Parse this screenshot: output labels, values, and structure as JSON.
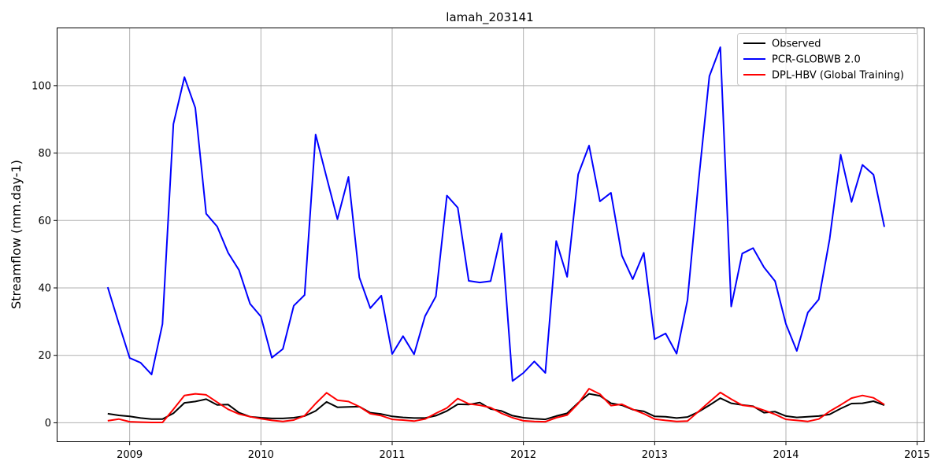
{
  "chart_data": {
    "type": "line",
    "title": "lamah_203141",
    "xlabel": "",
    "ylabel": "Streamflow (mm.day-1)",
    "xlim": [
      2008.45,
      2015.05
    ],
    "ylim": [
      -5.5,
      117
    ],
    "xticks": [
      2009,
      2010,
      2011,
      2012,
      2013,
      2014,
      2015
    ],
    "yticks": [
      0,
      20,
      40,
      60,
      80,
      100
    ],
    "grid": true,
    "legend_position": "top-right",
    "series": [
      {
        "name": "Observed",
        "color": "#000000",
        "points": [
          [
            2008.833,
            2.7
          ],
          [
            2008.917,
            2.2
          ],
          [
            2009.0,
            1.9
          ],
          [
            2009.083,
            1.4
          ],
          [
            2009.167,
            1.1
          ],
          [
            2009.25,
            1.1
          ],
          [
            2009.333,
            2.8
          ],
          [
            2009.417,
            5.9
          ],
          [
            2009.5,
            6.3
          ],
          [
            2009.583,
            7.0
          ],
          [
            2009.667,
            5.3
          ],
          [
            2009.75,
            5.4
          ],
          [
            2009.833,
            3.0
          ],
          [
            2009.917,
            1.8
          ],
          [
            2010.0,
            1.5
          ],
          [
            2010.083,
            1.3
          ],
          [
            2010.167,
            1.3
          ],
          [
            2010.25,
            1.5
          ],
          [
            2010.333,
            2.0
          ],
          [
            2010.417,
            3.5
          ],
          [
            2010.5,
            6.2
          ],
          [
            2010.583,
            4.6
          ],
          [
            2010.667,
            4.7
          ],
          [
            2010.75,
            4.8
          ],
          [
            2010.833,
            3.0
          ],
          [
            2010.917,
            2.6
          ],
          [
            2011.0,
            1.9
          ],
          [
            2011.083,
            1.6
          ],
          [
            2011.167,
            1.4
          ],
          [
            2011.25,
            1.4
          ],
          [
            2011.333,
            2.1
          ],
          [
            2011.417,
            3.5
          ],
          [
            2011.5,
            5.5
          ],
          [
            2011.583,
            5.4
          ],
          [
            2011.667,
            6.0
          ],
          [
            2011.75,
            4.1
          ],
          [
            2011.833,
            3.5
          ],
          [
            2011.917,
            2.1
          ],
          [
            2012.0,
            1.5
          ],
          [
            2012.083,
            1.2
          ],
          [
            2012.167,
            1.0
          ],
          [
            2012.25,
            2.0
          ],
          [
            2012.333,
            2.8
          ],
          [
            2012.417,
            5.9
          ],
          [
            2012.5,
            8.6
          ],
          [
            2012.583,
            8.0
          ],
          [
            2012.667,
            5.8
          ],
          [
            2012.75,
            5.2
          ],
          [
            2012.833,
            3.9
          ],
          [
            2012.917,
            3.4
          ],
          [
            2013.0,
            1.9
          ],
          [
            2013.083,
            1.8
          ],
          [
            2013.167,
            1.4
          ],
          [
            2013.25,
            1.7
          ],
          [
            2013.333,
            3.2
          ],
          [
            2013.417,
            5.2
          ],
          [
            2013.5,
            7.3
          ],
          [
            2013.583,
            5.8
          ],
          [
            2013.667,
            5.3
          ],
          [
            2013.75,
            4.9
          ],
          [
            2013.833,
            3.0
          ],
          [
            2013.917,
            3.3
          ],
          [
            2014.0,
            2.0
          ],
          [
            2014.083,
            1.6
          ],
          [
            2014.167,
            1.8
          ],
          [
            2014.25,
            2.0
          ],
          [
            2014.333,
            2.5
          ],
          [
            2014.417,
            4.2
          ],
          [
            2014.5,
            5.7
          ],
          [
            2014.583,
            5.8
          ],
          [
            2014.667,
            6.4
          ],
          [
            2014.75,
            5.2
          ]
        ]
      },
      {
        "name": "PCR-GLOBWB 2.0",
        "color": "#0000ff",
        "points": [
          [
            2008.833,
            40.2
          ],
          [
            2008.917,
            29.5
          ],
          [
            2009.0,
            19.2
          ],
          [
            2009.083,
            17.8
          ],
          [
            2009.167,
            14.3
          ],
          [
            2009.25,
            29.3
          ],
          [
            2009.333,
            88.6
          ],
          [
            2009.417,
            102.5
          ],
          [
            2009.5,
            93.4
          ],
          [
            2009.583,
            62.0
          ],
          [
            2009.667,
            58.2
          ],
          [
            2009.75,
            50.4
          ],
          [
            2009.833,
            45.3
          ],
          [
            2009.917,
            35.3
          ],
          [
            2010.0,
            31.5
          ],
          [
            2010.083,
            19.3
          ],
          [
            2010.167,
            21.9
          ],
          [
            2010.25,
            34.7
          ],
          [
            2010.333,
            37.9
          ],
          [
            2010.417,
            85.5
          ],
          [
            2010.5,
            72.8
          ],
          [
            2010.583,
            60.4
          ],
          [
            2010.667,
            72.9
          ],
          [
            2010.75,
            43.1
          ],
          [
            2010.833,
            34.0
          ],
          [
            2010.917,
            37.7
          ],
          [
            2011.0,
            20.4
          ],
          [
            2011.083,
            25.7
          ],
          [
            2011.167,
            20.3
          ],
          [
            2011.25,
            31.6
          ],
          [
            2011.333,
            37.5
          ],
          [
            2011.417,
            67.4
          ],
          [
            2011.5,
            63.8
          ],
          [
            2011.583,
            42.1
          ],
          [
            2011.667,
            41.6
          ],
          [
            2011.75,
            42.0
          ],
          [
            2011.833,
            56.2
          ],
          [
            2011.917,
            12.4
          ],
          [
            2012.0,
            14.8
          ],
          [
            2012.083,
            18.2
          ],
          [
            2012.167,
            14.8
          ],
          [
            2012.25,
            53.9
          ],
          [
            2012.333,
            43.3
          ],
          [
            2012.417,
            73.7
          ],
          [
            2012.5,
            82.2
          ],
          [
            2012.583,
            65.7
          ],
          [
            2012.667,
            68.2
          ],
          [
            2012.75,
            49.6
          ],
          [
            2012.833,
            42.6
          ],
          [
            2012.917,
            50.4
          ],
          [
            2013.0,
            24.8
          ],
          [
            2013.083,
            26.5
          ],
          [
            2013.167,
            20.5
          ],
          [
            2013.25,
            36.4
          ],
          [
            2013.333,
            71.0
          ],
          [
            2013.417,
            102.8
          ],
          [
            2013.5,
            111.4
          ],
          [
            2013.583,
            34.5
          ],
          [
            2013.667,
            50.2
          ],
          [
            2013.75,
            51.8
          ],
          [
            2013.833,
            46.1
          ],
          [
            2013.917,
            42.0
          ],
          [
            2014.0,
            29.3
          ],
          [
            2014.083,
            21.3
          ],
          [
            2014.167,
            32.7
          ],
          [
            2014.25,
            36.6
          ],
          [
            2014.333,
            54.5
          ],
          [
            2014.417,
            79.5
          ],
          [
            2014.5,
            65.5
          ],
          [
            2014.583,
            76.5
          ],
          [
            2014.667,
            73.6
          ],
          [
            2014.75,
            58.1
          ]
        ]
      },
      {
        "name": "DPL-HBV (Global Training)",
        "color": "#ff0000",
        "points": [
          [
            2008.833,
            0.6
          ],
          [
            2008.917,
            1.1
          ],
          [
            2009.0,
            0.3
          ],
          [
            2009.083,
            0.2
          ],
          [
            2009.167,
            0.1
          ],
          [
            2009.25,
            0.1
          ],
          [
            2009.333,
            4.0
          ],
          [
            2009.417,
            8.1
          ],
          [
            2009.5,
            8.6
          ],
          [
            2009.583,
            8.3
          ],
          [
            2009.667,
            6.1
          ],
          [
            2009.75,
            4.0
          ],
          [
            2009.833,
            2.6
          ],
          [
            2009.917,
            1.8
          ],
          [
            2010.0,
            1.2
          ],
          [
            2010.083,
            0.7
          ],
          [
            2010.167,
            0.4
          ],
          [
            2010.25,
            0.8
          ],
          [
            2010.333,
            2.1
          ],
          [
            2010.417,
            5.7
          ],
          [
            2010.5,
            8.9
          ],
          [
            2010.583,
            6.7
          ],
          [
            2010.667,
            6.3
          ],
          [
            2010.75,
            4.8
          ],
          [
            2010.833,
            2.7
          ],
          [
            2010.917,
            2.1
          ],
          [
            2011.0,
            1.0
          ],
          [
            2011.083,
            0.8
          ],
          [
            2011.167,
            0.5
          ],
          [
            2011.25,
            1.1
          ],
          [
            2011.333,
            2.8
          ],
          [
            2011.417,
            4.4
          ],
          [
            2011.5,
            7.2
          ],
          [
            2011.583,
            5.6
          ],
          [
            2011.667,
            5.2
          ],
          [
            2011.75,
            4.5
          ],
          [
            2011.833,
            2.8
          ],
          [
            2011.917,
            1.5
          ],
          [
            2012.0,
            0.6
          ],
          [
            2012.083,
            0.4
          ],
          [
            2012.167,
            0.3
          ],
          [
            2012.25,
            1.5
          ],
          [
            2012.333,
            2.3
          ],
          [
            2012.417,
            5.7
          ],
          [
            2012.5,
            10.1
          ],
          [
            2012.583,
            8.5
          ],
          [
            2012.667,
            5.1
          ],
          [
            2012.75,
            5.5
          ],
          [
            2012.833,
            4.0
          ],
          [
            2012.917,
            2.7
          ],
          [
            2013.0,
            1.1
          ],
          [
            2013.083,
            0.7
          ],
          [
            2013.167,
            0.4
          ],
          [
            2013.25,
            0.5
          ],
          [
            2013.333,
            3.3
          ],
          [
            2013.417,
            6.2
          ],
          [
            2013.5,
            9.0
          ],
          [
            2013.583,
            7.0
          ],
          [
            2013.667,
            5.2
          ],
          [
            2013.75,
            4.8
          ],
          [
            2013.833,
            3.7
          ],
          [
            2013.917,
            2.5
          ],
          [
            2014.0,
            1.0
          ],
          [
            2014.083,
            0.7
          ],
          [
            2014.167,
            0.4
          ],
          [
            2014.25,
            1.1
          ],
          [
            2014.333,
            3.4
          ],
          [
            2014.417,
            5.3
          ],
          [
            2014.5,
            7.3
          ],
          [
            2014.583,
            8.1
          ],
          [
            2014.667,
            7.4
          ],
          [
            2014.75,
            5.4
          ]
        ]
      }
    ]
  }
}
